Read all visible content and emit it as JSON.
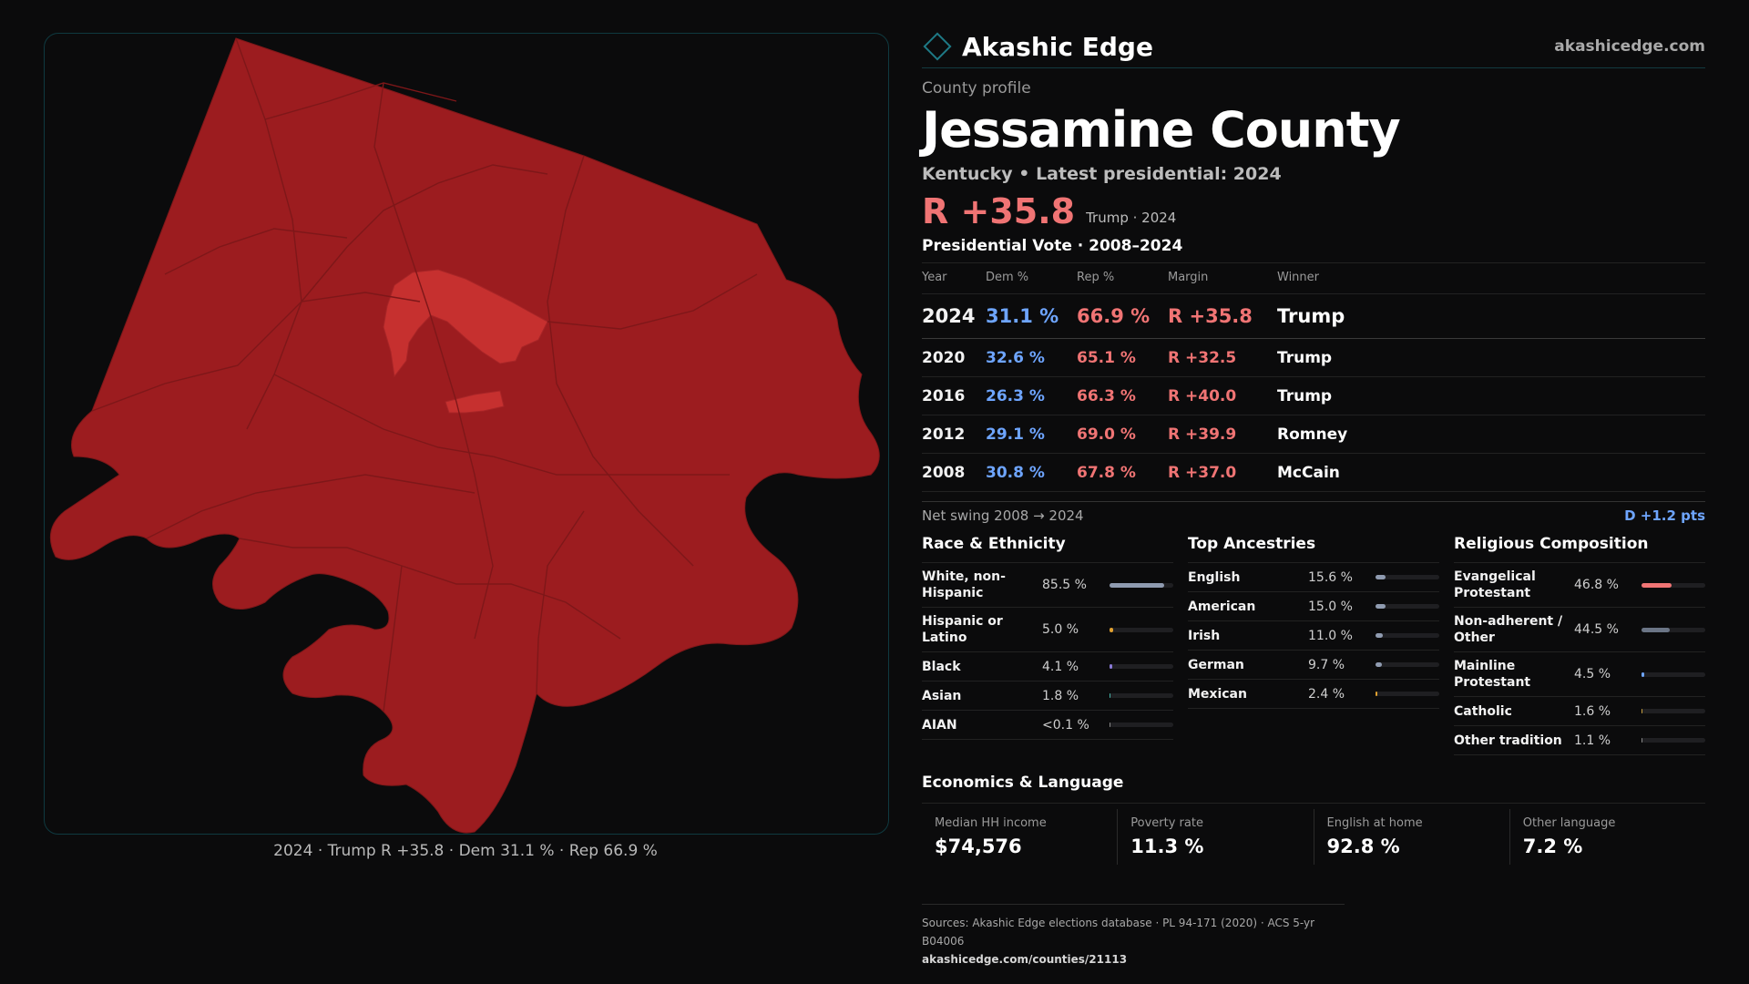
{
  "brand": {
    "name": "Akashic Edge",
    "site": "akashicedge.com"
  },
  "profile": {
    "eyebrow": "County profile",
    "county": "Jessamine County",
    "subtitle": "Kentucky • Latest presidential: 2024",
    "margin": "R +35.8",
    "margin_note": "Trump · 2024"
  },
  "map": {
    "caption": "2024 · Trump R +35.8 · Dem 31.1 % · Rep 66.9 %",
    "fill_color": "#9c1c1f",
    "urban_fill_color": "#c6302f",
    "border_color": "#7e1719"
  },
  "votes": {
    "title": "Presidential Vote · 2008–2024",
    "headers": {
      "year": "Year",
      "dem": "Dem %",
      "rep": "Rep %",
      "margin": "Margin",
      "winner": "Winner"
    },
    "rows": [
      {
        "year": "2024",
        "dem": "31.1 %",
        "rep": "66.9 %",
        "margin": "R +35.8",
        "winner": "Trump"
      },
      {
        "year": "2020",
        "dem": "32.6 %",
        "rep": "65.1 %",
        "margin": "R +32.5",
        "winner": "Trump"
      },
      {
        "year": "2016",
        "dem": "26.3 %",
        "rep": "66.3 %",
        "margin": "R +40.0",
        "winner": "Trump"
      },
      {
        "year": "2012",
        "dem": "29.1 %",
        "rep": "69.0 %",
        "margin": "R +39.9",
        "winner": "Romney"
      },
      {
        "year": "2008",
        "dem": "30.8 %",
        "rep": "67.8 %",
        "margin": "R +37.0",
        "winner": "McCain"
      }
    ],
    "swing_label": "Net swing 2008 → 2024",
    "swing_value": "D +1.2 pts"
  },
  "race": {
    "title": "Race & Ethnicity",
    "items": [
      {
        "label": "White, non-Hispanic",
        "pct": "85.5 %",
        "value": 85.5,
        "color": "#8f9bb0"
      },
      {
        "label": "Hispanic or Latino",
        "pct": "5.0 %",
        "value": 5.0,
        "color": "#e0a030"
      },
      {
        "label": "Black",
        "pct": "4.1 %",
        "value": 4.1,
        "color": "#8a7ad8"
      },
      {
        "label": "Asian",
        "pct": "1.8 %",
        "value": 1.8,
        "color": "#45b3a8"
      },
      {
        "label": "AIAN",
        "pct": "<0.1 %",
        "value": 0.1,
        "color": "#8a8a8a"
      }
    ]
  },
  "ancestry": {
    "title": "Top Ancestries",
    "items": [
      {
        "label": "English",
        "pct": "15.6 %",
        "value": 15.6,
        "color": "#8f9bb0"
      },
      {
        "label": "American",
        "pct": "15.0 %",
        "value": 15.0,
        "color": "#8f9bb0"
      },
      {
        "label": "Irish",
        "pct": "11.0 %",
        "value": 11.0,
        "color": "#8f9bb0"
      },
      {
        "label": "German",
        "pct": "9.7 %",
        "value": 9.7,
        "color": "#8f9bb0"
      },
      {
        "label": "Mexican",
        "pct": "2.4 %",
        "value": 2.4,
        "color": "#e0a030"
      }
    ]
  },
  "religion": {
    "title": "Religious Composition",
    "items": [
      {
        "label": "Evangelical Protestant",
        "pct": "46.8 %",
        "value": 46.8,
        "color": "#f07474"
      },
      {
        "label": "Non-adherent / Other",
        "pct": "44.5 %",
        "value": 44.5,
        "color": "#6b7586"
      },
      {
        "label": "Mainline Protestant",
        "pct": "4.5 %",
        "value": 4.5,
        "color": "#6ea5ff"
      },
      {
        "label": "Catholic",
        "pct": "1.6 %",
        "value": 1.6,
        "color": "#c8a040"
      },
      {
        "label": "Other tradition",
        "pct": "1.1 %",
        "value": 1.1,
        "color": "#8a8a8a"
      }
    ]
  },
  "economics": {
    "title": "Economics & Language",
    "items": [
      {
        "label": "Median HH income",
        "value": "$74,576"
      },
      {
        "label": "Poverty rate",
        "value": "11.3 %"
      },
      {
        "label": "English at home",
        "value": "92.8 %"
      },
      {
        "label": "Other language",
        "value": "7.2 %"
      }
    ]
  },
  "sources": {
    "text": "Sources: Akashic Edge elections database · PL 94-171 (2020) · ACS 5-yr B04006",
    "url": "akashicedge.com/counties/21113"
  }
}
